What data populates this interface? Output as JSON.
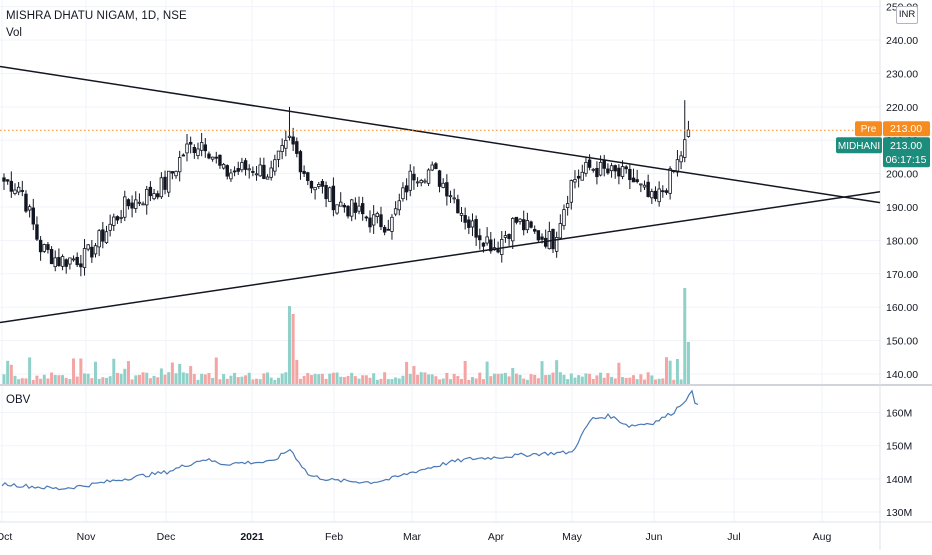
{
  "header": {
    "title": "MISHRA DHATU NIGAM, 1D, NSE",
    "vol_label": "Vol",
    "obv_label": "OBV",
    "currency": "INR"
  },
  "badges": {
    "pre_label": "Pre",
    "pre_value": "213.00",
    "ticker_label": "MIDHANI",
    "ticker_value": "213.00",
    "countdown": "06:17:15"
  },
  "colors": {
    "up": "#26a69a",
    "down": "#ef5350",
    "vol_up": "#8fd1c9",
    "vol_down": "#f4a4a2",
    "obv_line": "#4a79b4",
    "pre": "#f68b1f",
    "ticker": "#1c8c7c",
    "trendline": "#131722"
  },
  "chart_data": [
    {
      "type": "candlestick",
      "title": "MISHRA DHATU NIGAM, 1D, NSE",
      "y_ticks": [
        "140.00",
        "150.00",
        "160.00",
        "170.00",
        "180.00",
        "190.00",
        "200.00",
        "210.00",
        "220.00",
        "230.00",
        "240.00",
        "250.00"
      ],
      "ylim": [
        137,
        252
      ],
      "x_ticks": [
        "Oct",
        "Nov",
        "Dec",
        "2021",
        "Feb",
        "Mar",
        "Apr",
        "May",
        "Jun",
        "Jul",
        "Aug"
      ],
      "trendlines": [
        {
          "from": [
            "Oct",
            232
          ],
          "to": [
            "Aug",
            194
          ]
        },
        {
          "from": [
            "Oct",
            155.5
          ],
          "to": [
            "Aug",
            192
          ]
        }
      ],
      "last_price": 213.0,
      "series": [
        {
          "name": "MISHRA DHATU NIGAM",
          "waypoints": [
            [
              "Oct",
              198
            ],
            [
              "Oct+1w",
              196
            ],
            [
              "Oct+2w",
              178
            ],
            [
              "Oct+3w",
              174
            ],
            [
              "Nov",
              175
            ],
            [
              "Nov+2w",
              190
            ],
            [
              "Nov+3w",
              193
            ],
            [
              "Dec",
              197
            ],
            [
              "Dec+1w",
              207
            ],
            [
              "Dec+2w",
              210
            ],
            [
              "Dec+3w",
              200
            ],
            [
              "2021",
              202
            ],
            [
              "2021+1w",
              200
            ],
            [
              "2021+2w",
              210
            ],
            [
              "2021+3w",
              198
            ],
            [
              "Feb",
              192
            ],
            [
              "Feb+2w",
              186
            ],
            [
              "Feb+3w",
              185
            ],
            [
              "Mar",
              200
            ],
            [
              "Mar+1w",
              201
            ],
            [
              "Mar+2w",
              195
            ],
            [
              "Mar+3w",
              185
            ],
            [
              "Apr",
              178
            ],
            [
              "Apr+1w",
              186
            ],
            [
              "Apr+2w",
              182
            ],
            [
              "Apr+3w",
              180
            ],
            [
              "May",
              198
            ],
            [
              "May+1w",
              202
            ],
            [
              "May+2w",
              200
            ],
            [
              "May+3w",
              199
            ],
            [
              "Jun",
              191
            ],
            [
              "Jun+1w",
              200
            ],
            [
              "Jun+2w",
              214
            ],
            [
              "Jun+2w",
              213
            ]
          ]
        }
      ]
    },
    {
      "type": "bar",
      "title": "Vol",
      "note": "volume bars, green for up days and red for down days; spikes mid-Jan, mid-Jan (red), early May, mid-June",
      "relative_values": {
        "base": 0.08,
        "peaks": {
          "2021+2w": 1.0,
          "2021+2w+1d": 0.9,
          "May": 0.5,
          "Jun+2w": 1.16,
          "Jun+2w+1d": 0.55
        }
      }
    },
    {
      "type": "line",
      "title": "OBV",
      "y_ticks": [
        "130M",
        "140M",
        "150M",
        "160M"
      ],
      "ylim": [
        127,
        168
      ],
      "series": [
        {
          "name": "OBV",
          "waypoints": [
            [
              "Oct",
              138.5
            ],
            [
              "Oct+3w",
              137
            ],
            [
              "Nov",
              138
            ],
            [
              "Nov+3w",
              141
            ],
            [
              "Dec",
              142
            ],
            [
              "Dec+2w",
              146
            ],
            [
              "Dec+3w",
              144.5
            ],
            [
              "2021",
              145
            ],
            [
              "2021+1w",
              145
            ],
            [
              "2021+2w",
              149
            ],
            [
              "2021+3w",
              141
            ],
            [
              "Feb",
              139.5
            ],
            [
              "Feb+2w",
              139
            ],
            [
              "Feb+3w",
              140
            ],
            [
              "Mar",
              142
            ],
            [
              "Mar+2w",
              145
            ],
            [
              "Mar+3w",
              146
            ],
            [
              "Apr",
              146.5
            ],
            [
              "Apr+2w",
              147.5
            ],
            [
              "May",
              148
            ],
            [
              "May+1w",
              158
            ],
            [
              "May+2w",
              159
            ],
            [
              "May+3w",
              156
            ],
            [
              "Jun",
              157
            ],
            [
              "Jun+1w",
              160
            ],
            [
              "Jun+2w",
              166
            ],
            [
              "Jun+2w",
              163
            ]
          ]
        }
      ]
    }
  ]
}
